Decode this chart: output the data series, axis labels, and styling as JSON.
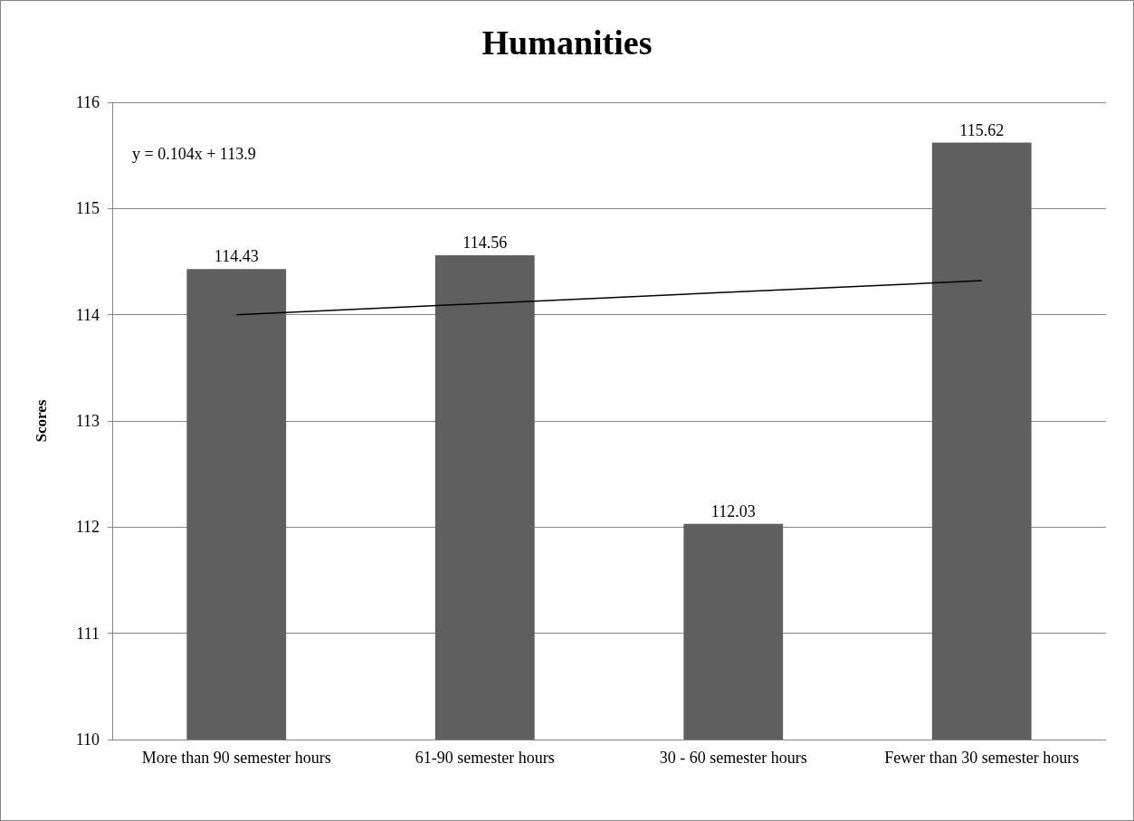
{
  "chart_data": {
    "type": "bar",
    "title": "Humanities",
    "ylabel": "Scores",
    "categories": [
      "More than 90 semester hours",
      "61-90 semester hours",
      "30 - 60 semester hours",
      "Fewer than 30 semester hours"
    ],
    "series": [
      {
        "color": "#5f5f5f",
        "values": [
          114.43,
          114.56,
          112.03,
          115.62
        ],
        "value_labels": [
          "114.43",
          "114.56",
          "112.03",
          "115.62"
        ]
      },
      {
        "type": "line",
        "color": "#000000",
        "x": [
          "More than 90 semester hours",
          "Fewer than 30 semester hours"
        ],
        "values": [
          114.0,
          114.32
        ]
      }
    ],
    "ylim": [
      110,
      116
    ],
    "yticks": [
      110,
      111,
      112,
      113,
      114,
      115,
      116
    ],
    "grid": "y",
    "annotations": [
      "y = 0.104x + 113.9"
    ]
  }
}
